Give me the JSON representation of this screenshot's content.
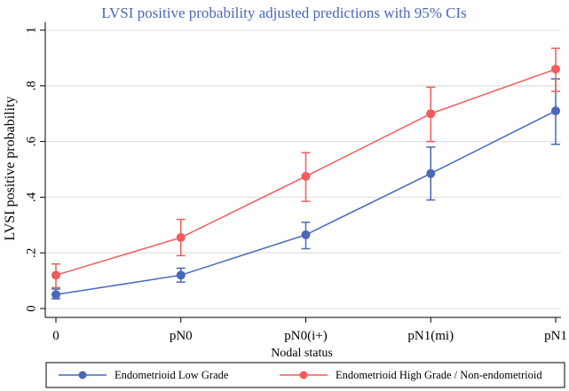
{
  "chart_data": {
    "type": "line",
    "title": "LVSI positive probability adjusted predictions with 95% CIs",
    "xlabel": "Nodal status",
    "ylabel": "LVSI positive probability",
    "categories": [
      "0",
      "pN0",
      "pN0(i+)",
      "pN1(mi)",
      "pN1"
    ],
    "yticks": [
      0,
      0.2,
      0.4,
      0.6,
      0.8,
      1
    ],
    "ytick_labels": [
      "0",
      ".2",
      ".4",
      ".6",
      ".8",
      "1"
    ],
    "ylim": [
      0,
      1
    ],
    "grid": true,
    "legend_position": "bottom",
    "series": [
      {
        "name": "Endometrioid Low Grade",
        "color": "#4a67b8",
        "values": [
          0.05,
          0.12,
          0.265,
          0.485,
          0.71
        ],
        "lower": [
          0.035,
          0.095,
          0.215,
          0.39,
          0.59
        ],
        "upper": [
          0.07,
          0.145,
          0.31,
          0.58,
          0.825
        ]
      },
      {
        "name": "Endometrioid High Grade / Non-endometrioid",
        "color": "#f25b5b",
        "values": [
          0.12,
          0.255,
          0.475,
          0.7,
          0.86
        ],
        "lower": [
          0.075,
          0.19,
          0.385,
          0.6,
          0.78
        ],
        "upper": [
          0.16,
          0.32,
          0.56,
          0.795,
          0.935
        ]
      }
    ]
  }
}
